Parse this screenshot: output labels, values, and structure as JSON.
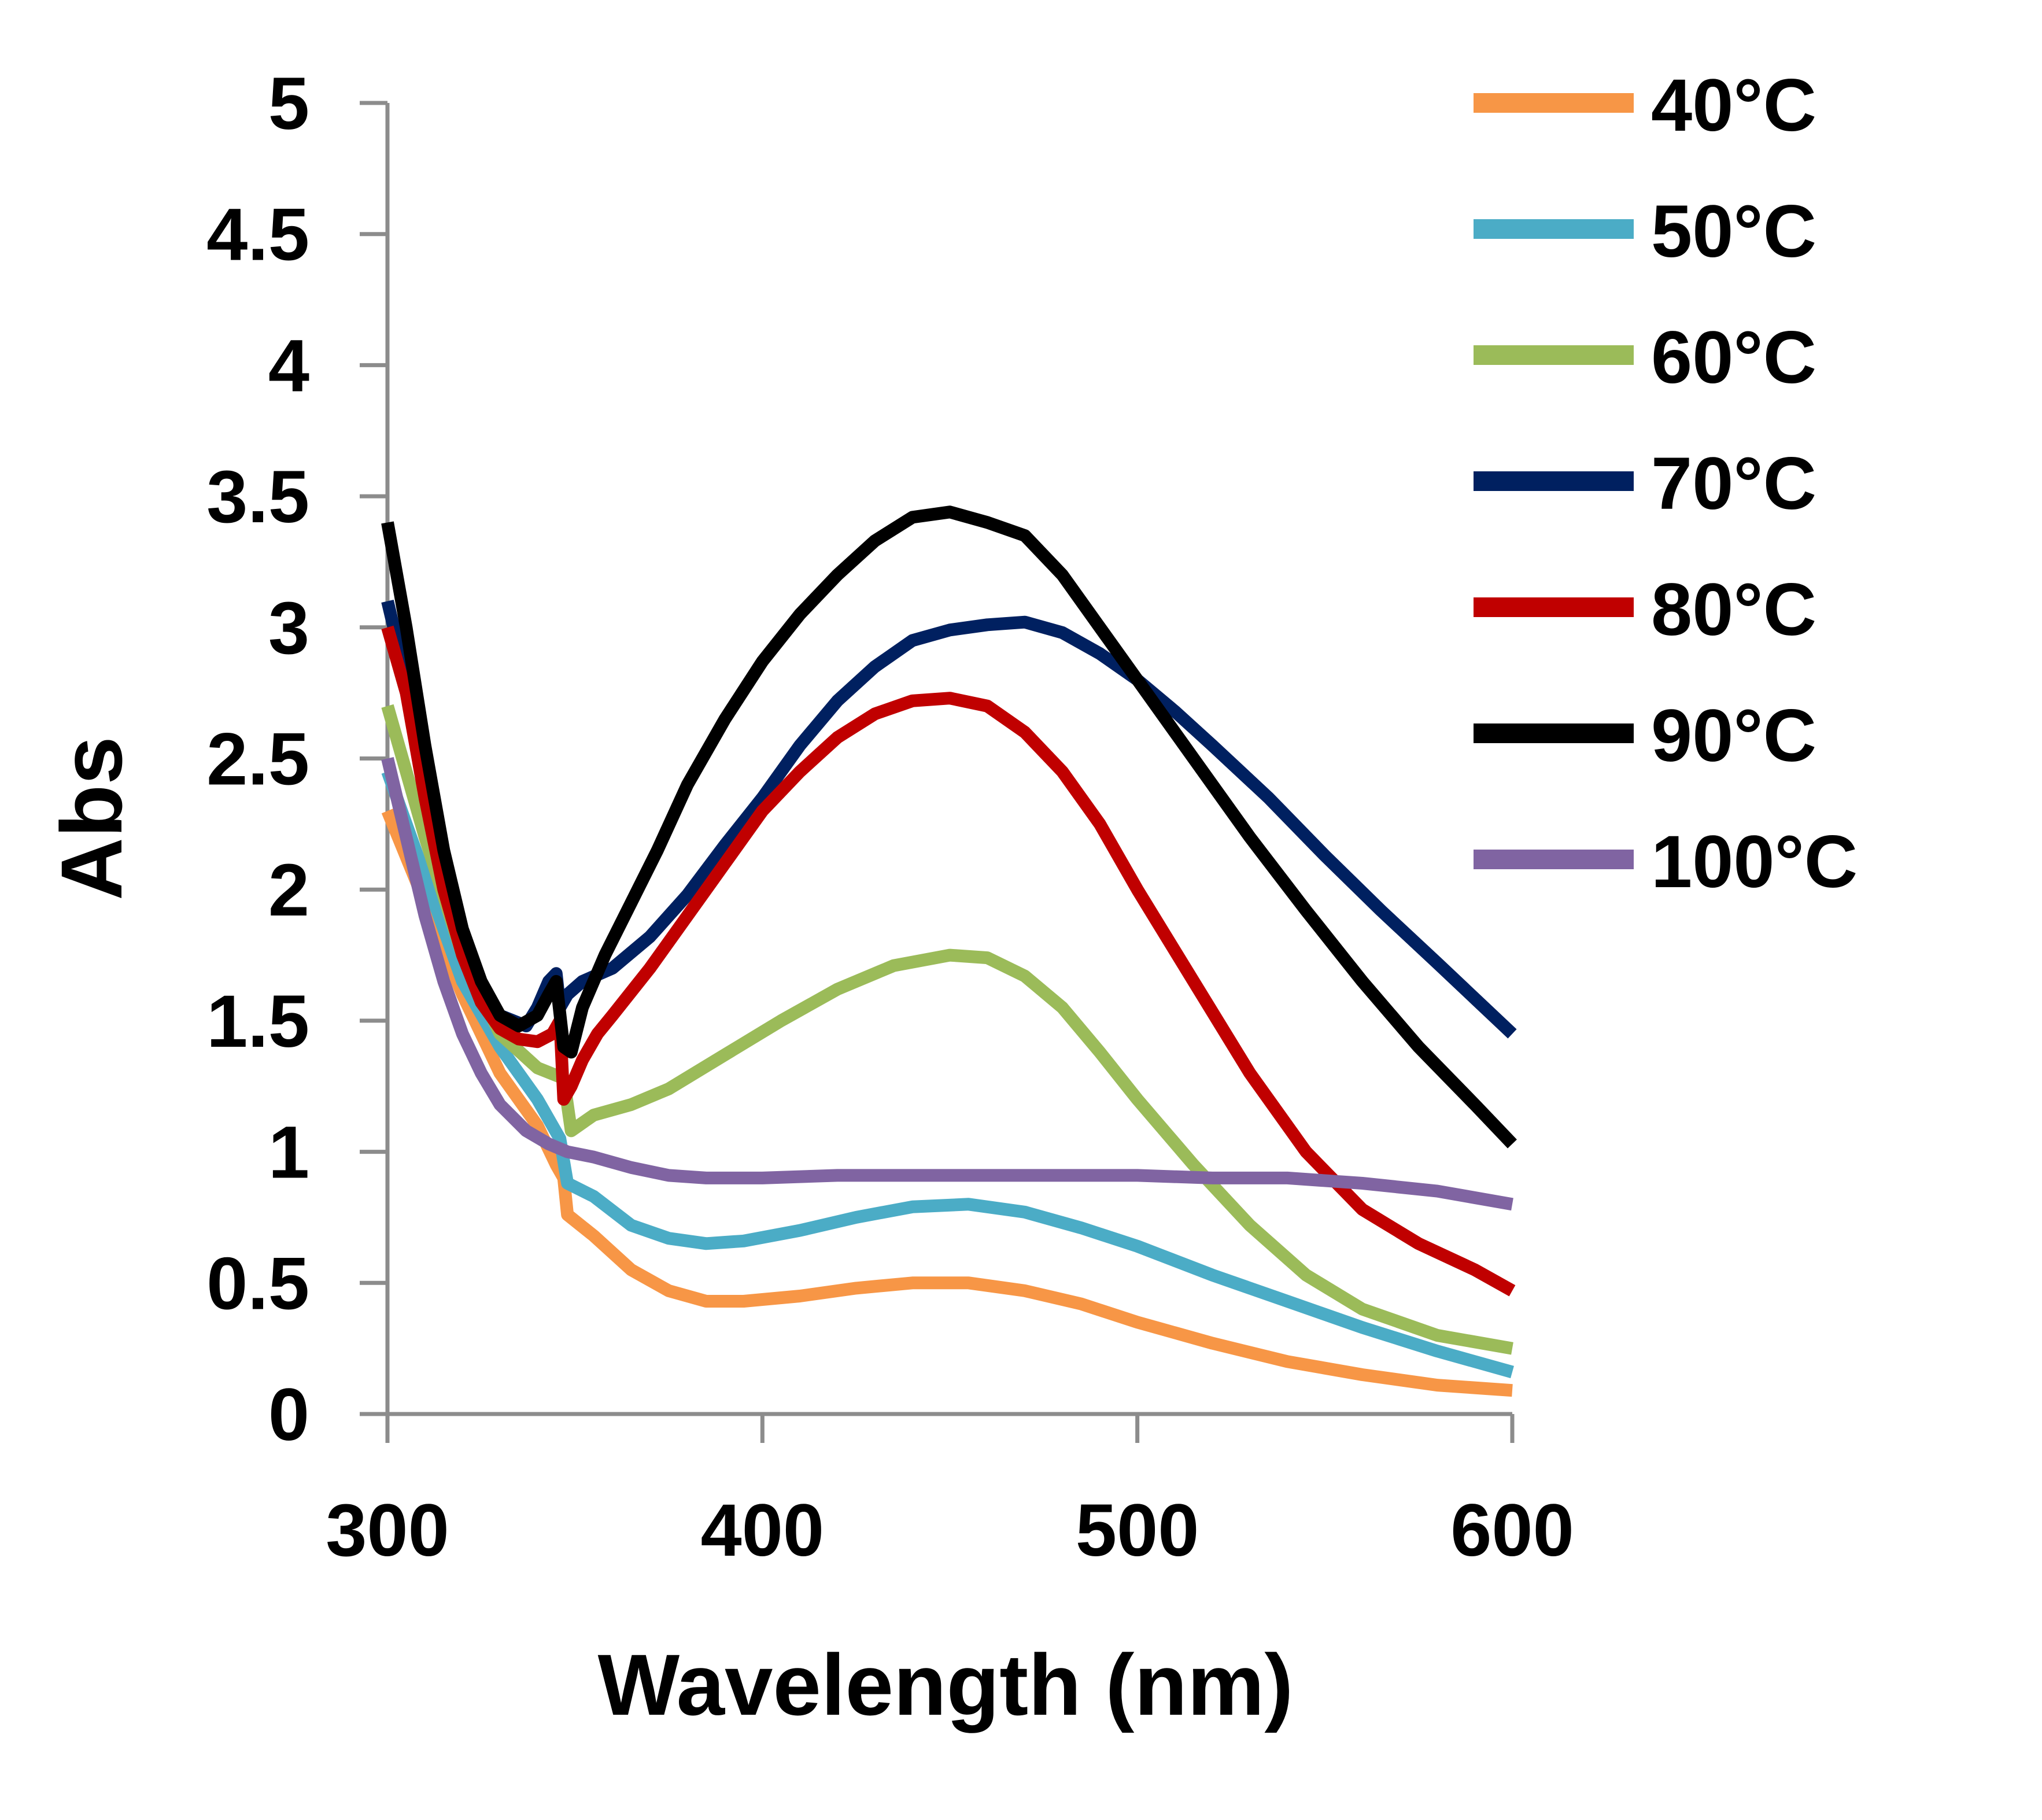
{
  "chart_data": {
    "type": "line",
    "xlabel": "Wavelength (nm)",
    "ylabel": "Abs",
    "xlim": [
      300,
      600
    ],
    "ylim": [
      0,
      5
    ],
    "xticks": [
      300,
      400,
      500,
      600
    ],
    "xtick_labels": [
      "300",
      "400",
      "500",
      "600"
    ],
    "yticks": [
      0,
      0.5,
      1,
      1.5,
      2,
      2.5,
      3,
      3.5,
      4,
      4.5,
      5
    ],
    "ytick_labels": [
      "0",
      "0.5",
      "1",
      "1.5",
      "2",
      "2.5",
      "3",
      "3.5",
      "4",
      "4.5",
      "5"
    ],
    "grid": false,
    "legend_position": "right",
    "series": [
      {
        "name": "40°C",
        "color": "#F79646",
        "points": [
          [
            300,
            2.3
          ],
          [
            310,
            1.95
          ],
          [
            320,
            1.6
          ],
          [
            330,
            1.3
          ],
          [
            340,
            1.1
          ],
          [
            345,
            0.95
          ],
          [
            347,
            0.9
          ],
          [
            348,
            0.76
          ],
          [
            355,
            0.68
          ],
          [
            365,
            0.55
          ],
          [
            375,
            0.47
          ],
          [
            385,
            0.43
          ],
          [
            395,
            0.43
          ],
          [
            410,
            0.45
          ],
          [
            425,
            0.48
          ],
          [
            440,
            0.5
          ],
          [
            455,
            0.5
          ],
          [
            470,
            0.47
          ],
          [
            485,
            0.42
          ],
          [
            500,
            0.35
          ],
          [
            520,
            0.27
          ],
          [
            540,
            0.2
          ],
          [
            560,
            0.15
          ],
          [
            580,
            0.11
          ],
          [
            600,
            0.09
          ]
        ]
      },
      {
        "name": "50°C",
        "color": "#4BACC6",
        "points": [
          [
            300,
            2.45
          ],
          [
            310,
            2.05
          ],
          [
            320,
            1.65
          ],
          [
            330,
            1.4
          ],
          [
            340,
            1.2
          ],
          [
            346,
            1.05
          ],
          [
            348,
            0.88
          ],
          [
            355,
            0.83
          ],
          [
            365,
            0.72
          ],
          [
            375,
            0.67
          ],
          [
            385,
            0.65
          ],
          [
            395,
            0.66
          ],
          [
            410,
            0.7
          ],
          [
            425,
            0.75
          ],
          [
            440,
            0.79
          ],
          [
            455,
            0.8
          ],
          [
            470,
            0.77
          ],
          [
            485,
            0.71
          ],
          [
            500,
            0.64
          ],
          [
            520,
            0.53
          ],
          [
            540,
            0.43
          ],
          [
            560,
            0.33
          ],
          [
            580,
            0.24
          ],
          [
            600,
            0.16
          ]
        ]
      },
      {
        "name": "60°C",
        "color": "#9BBB59",
        "points": [
          [
            300,
            2.7
          ],
          [
            310,
            2.2
          ],
          [
            320,
            1.75
          ],
          [
            330,
            1.45
          ],
          [
            340,
            1.32
          ],
          [
            347,
            1.28
          ],
          [
            349,
            1.08
          ],
          [
            355,
            1.14
          ],
          [
            365,
            1.18
          ],
          [
            375,
            1.24
          ],
          [
            390,
            1.37
          ],
          [
            405,
            1.5
          ],
          [
            420,
            1.62
          ],
          [
            435,
            1.71
          ],
          [
            450,
            1.75
          ],
          [
            460,
            1.74
          ],
          [
            470,
            1.67
          ],
          [
            480,
            1.55
          ],
          [
            490,
            1.38
          ],
          [
            500,
            1.2
          ],
          [
            515,
            0.95
          ],
          [
            530,
            0.72
          ],
          [
            545,
            0.53
          ],
          [
            560,
            0.4
          ],
          [
            580,
            0.3
          ],
          [
            600,
            0.25
          ]
        ]
      },
      {
        "name": "70°C",
        "color": "#002060",
        "points": [
          [
            300,
            3.1
          ],
          [
            305,
            2.8
          ],
          [
            310,
            2.4
          ],
          [
            315,
            2.05
          ],
          [
            320,
            1.78
          ],
          [
            325,
            1.6
          ],
          [
            330,
            1.52
          ],
          [
            337,
            1.48
          ],
          [
            340,
            1.55
          ],
          [
            343,
            1.65
          ],
          [
            345,
            1.68
          ],
          [
            346,
            1.55
          ],
          [
            348,
            1.6
          ],
          [
            352,
            1.65
          ],
          [
            360,
            1.7
          ],
          [
            370,
            1.82
          ],
          [
            380,
            1.98
          ],
          [
            390,
            2.17
          ],
          [
            400,
            2.35
          ],
          [
            410,
            2.55
          ],
          [
            420,
            2.72
          ],
          [
            430,
            2.85
          ],
          [
            440,
            2.95
          ],
          [
            450,
            2.99
          ],
          [
            460,
            3.01
          ],
          [
            470,
            3.02
          ],
          [
            480,
            2.98
          ],
          [
            490,
            2.9
          ],
          [
            500,
            2.8
          ],
          [
            510,
            2.68
          ],
          [
            520,
            2.55
          ],
          [
            535,
            2.35
          ],
          [
            550,
            2.13
          ],
          [
            565,
            1.92
          ],
          [
            580,
            1.72
          ],
          [
            600,
            1.45
          ]
        ]
      },
      {
        "name": "80°C",
        "color": "#C00000",
        "points": [
          [
            300,
            3.0
          ],
          [
            305,
            2.75
          ],
          [
            310,
            2.35
          ],
          [
            315,
            2.0
          ],
          [
            320,
            1.75
          ],
          [
            325,
            1.57
          ],
          [
            330,
            1.47
          ],
          [
            335,
            1.43
          ],
          [
            340,
            1.42
          ],
          [
            344,
            1.45
          ],
          [
            346,
            1.5
          ],
          [
            347,
            1.2
          ],
          [
            349,
            1.25
          ],
          [
            352,
            1.35
          ],
          [
            356,
            1.45
          ],
          [
            360,
            1.52
          ],
          [
            370,
            1.7
          ],
          [
            380,
            1.9
          ],
          [
            390,
            2.1
          ],
          [
            400,
            2.3
          ],
          [
            410,
            2.45
          ],
          [
            420,
            2.58
          ],
          [
            430,
            2.67
          ],
          [
            440,
            2.72
          ],
          [
            450,
            2.73
          ],
          [
            460,
            2.7
          ],
          [
            470,
            2.6
          ],
          [
            480,
            2.45
          ],
          [
            490,
            2.25
          ],
          [
            500,
            2.0
          ],
          [
            515,
            1.65
          ],
          [
            530,
            1.3
          ],
          [
            545,
            1.0
          ],
          [
            560,
            0.78
          ],
          [
            575,
            0.65
          ],
          [
            590,
            0.55
          ],
          [
            600,
            0.47
          ]
        ]
      },
      {
        "name": "90°C",
        "color": "#000000",
        "points": [
          [
            300,
            3.4
          ],
          [
            305,
            3.0
          ],
          [
            310,
            2.55
          ],
          [
            315,
            2.15
          ],
          [
            320,
            1.85
          ],
          [
            325,
            1.65
          ],
          [
            330,
            1.52
          ],
          [
            335,
            1.48
          ],
          [
            340,
            1.52
          ],
          [
            343,
            1.6
          ],
          [
            345,
            1.65
          ],
          [
            347,
            1.4
          ],
          [
            349,
            1.38
          ],
          [
            352,
            1.55
          ],
          [
            358,
            1.75
          ],
          [
            365,
            1.95
          ],
          [
            372,
            2.15
          ],
          [
            380,
            2.4
          ],
          [
            390,
            2.65
          ],
          [
            400,
            2.87
          ],
          [
            410,
            3.05
          ],
          [
            420,
            3.2
          ],
          [
            430,
            3.33
          ],
          [
            440,
            3.42
          ],
          [
            450,
            3.44
          ],
          [
            460,
            3.4
          ],
          [
            470,
            3.35
          ],
          [
            480,
            3.2
          ],
          [
            490,
            3.0
          ],
          [
            500,
            2.8
          ],
          [
            515,
            2.5
          ],
          [
            530,
            2.2
          ],
          [
            545,
            1.92
          ],
          [
            560,
            1.65
          ],
          [
            575,
            1.4
          ],
          [
            590,
            1.18
          ],
          [
            600,
            1.03
          ]
        ]
      },
      {
        "name": "100°C",
        "color": "#8064A2",
        "points": [
          [
            300,
            2.5
          ],
          [
            305,
            2.2
          ],
          [
            310,
            1.9
          ],
          [
            315,
            1.65
          ],
          [
            320,
            1.45
          ],
          [
            325,
            1.3
          ],
          [
            330,
            1.18
          ],
          [
            337,
            1.08
          ],
          [
            343,
            1.03
          ],
          [
            348,
            1.0
          ],
          [
            355,
            0.98
          ],
          [
            365,
            0.94
          ],
          [
            375,
            0.91
          ],
          [
            385,
            0.9
          ],
          [
            400,
            0.9
          ],
          [
            420,
            0.91
          ],
          [
            440,
            0.91
          ],
          [
            460,
            0.91
          ],
          [
            480,
            0.91
          ],
          [
            500,
            0.91
          ],
          [
            520,
            0.9
          ],
          [
            540,
            0.9
          ],
          [
            560,
            0.88
          ],
          [
            580,
            0.85
          ],
          [
            600,
            0.8
          ]
        ]
      }
    ]
  }
}
